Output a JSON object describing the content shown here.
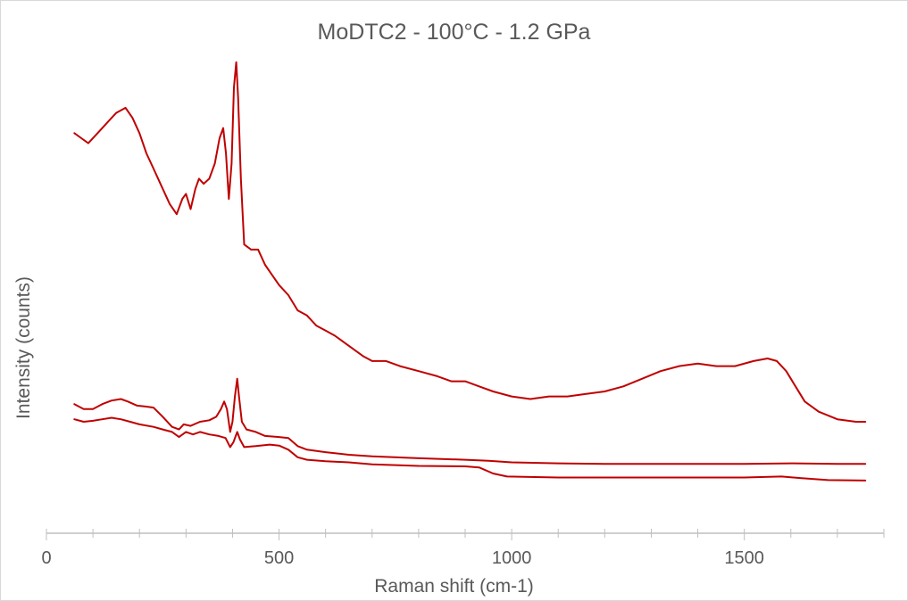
{
  "colors": {
    "series": "#c00000",
    "axis": "#bfbfbf",
    "text": "#595959"
  },
  "chart_data": {
    "type": "line",
    "title": "MoDTC2 - 100°C - 1.2 GPa",
    "xlabel": "Raman shift (cm-1)",
    "ylabel": "Intensity (counts)",
    "xlim": [
      0,
      1800
    ],
    "ylim": [
      0,
      1
    ],
    "x_major_ticks": [
      0,
      500,
      1000,
      1500
    ],
    "x_minor_step": 100,
    "y_tick_labels_shown": false,
    "grid": false,
    "legend": "none",
    "series": [
      {
        "values": [
          [
            60,
            0.79
          ],
          [
            75,
            0.78
          ],
          [
            90,
            0.77
          ],
          [
            110,
            0.79
          ],
          [
            130,
            0.81
          ],
          [
            150,
            0.83
          ],
          [
            170,
            0.84
          ],
          [
            185,
            0.82
          ],
          [
            200,
            0.79
          ],
          [
            215,
            0.75
          ],
          [
            230,
            0.72
          ],
          [
            250,
            0.68
          ],
          [
            265,
            0.65
          ],
          [
            280,
            0.63
          ],
          [
            292,
            0.66
          ],
          [
            300,
            0.67
          ],
          [
            310,
            0.64
          ],
          [
            320,
            0.68
          ],
          [
            328,
            0.7
          ],
          [
            338,
            0.69
          ],
          [
            350,
            0.7
          ],
          [
            362,
            0.73
          ],
          [
            372,
            0.78
          ],
          [
            380,
            0.8
          ],
          [
            386,
            0.75
          ],
          [
            392,
            0.66
          ],
          [
            398,
            0.73
          ],
          [
            403,
            0.88
          ],
          [
            408,
            0.93
          ],
          [
            412,
            0.86
          ],
          [
            418,
            0.7
          ],
          [
            425,
            0.57
          ],
          [
            440,
            0.56
          ],
          [
            455,
            0.56
          ],
          [
            470,
            0.53
          ],
          [
            485,
            0.51
          ],
          [
            500,
            0.49
          ],
          [
            520,
            0.47
          ],
          [
            540,
            0.44
          ],
          [
            560,
            0.43
          ],
          [
            580,
            0.41
          ],
          [
            600,
            0.4
          ],
          [
            620,
            0.39
          ],
          [
            650,
            0.37
          ],
          [
            680,
            0.35
          ],
          [
            700,
            0.34
          ],
          [
            730,
            0.34
          ],
          [
            760,
            0.33
          ],
          [
            800,
            0.32
          ],
          [
            840,
            0.31
          ],
          [
            870,
            0.3
          ],
          [
            900,
            0.3
          ],
          [
            930,
            0.29
          ],
          [
            960,
            0.28
          ],
          [
            1000,
            0.27
          ],
          [
            1040,
            0.265
          ],
          [
            1080,
            0.27
          ],
          [
            1120,
            0.27
          ],
          [
            1160,
            0.275
          ],
          [
            1200,
            0.28
          ],
          [
            1240,
            0.29
          ],
          [
            1280,
            0.305
          ],
          [
            1320,
            0.32
          ],
          [
            1360,
            0.33
          ],
          [
            1400,
            0.335
          ],
          [
            1440,
            0.33
          ],
          [
            1480,
            0.33
          ],
          [
            1520,
            0.34
          ],
          [
            1550,
            0.345
          ],
          [
            1570,
            0.34
          ],
          [
            1590,
            0.32
          ],
          [
            1610,
            0.29
          ],
          [
            1630,
            0.26
          ],
          [
            1660,
            0.24
          ],
          [
            1700,
            0.225
          ],
          [
            1740,
            0.22
          ],
          [
            1760,
            0.22
          ]
        ]
      },
      {
        "values": [
          [
            60,
            0.255
          ],
          [
            80,
            0.245
          ],
          [
            100,
            0.245
          ],
          [
            120,
            0.255
          ],
          [
            140,
            0.262
          ],
          [
            160,
            0.265
          ],
          [
            175,
            0.26
          ],
          [
            195,
            0.252
          ],
          [
            215,
            0.25
          ],
          [
            230,
            0.248
          ],
          [
            250,
            0.23
          ],
          [
            270,
            0.21
          ],
          [
            285,
            0.205
          ],
          [
            295,
            0.215
          ],
          [
            310,
            0.212
          ],
          [
            330,
            0.22
          ],
          [
            350,
            0.223
          ],
          [
            365,
            0.23
          ],
          [
            375,
            0.245
          ],
          [
            382,
            0.26
          ],
          [
            388,
            0.245
          ],
          [
            395,
            0.2
          ],
          [
            400,
            0.22
          ],
          [
            405,
            0.27
          ],
          [
            410,
            0.305
          ],
          [
            414,
            0.27
          ],
          [
            420,
            0.22
          ],
          [
            430,
            0.205
          ],
          [
            450,
            0.2
          ],
          [
            470,
            0.192
          ],
          [
            500,
            0.19
          ],
          [
            520,
            0.188
          ],
          [
            540,
            0.172
          ],
          [
            560,
            0.165
          ],
          [
            600,
            0.16
          ],
          [
            650,
            0.155
          ],
          [
            700,
            0.152
          ],
          [
            800,
            0.148
          ],
          [
            900,
            0.145
          ],
          [
            950,
            0.143
          ],
          [
            1000,
            0.14
          ],
          [
            1100,
            0.138
          ],
          [
            1200,
            0.137
          ],
          [
            1300,
            0.137
          ],
          [
            1400,
            0.137
          ],
          [
            1500,
            0.137
          ],
          [
            1600,
            0.138
          ],
          [
            1700,
            0.137
          ],
          [
            1760,
            0.137
          ]
        ]
      },
      {
        "values": [
          [
            60,
            0.225
          ],
          [
            80,
            0.22
          ],
          [
            100,
            0.222
          ],
          [
            120,
            0.225
          ],
          [
            140,
            0.228
          ],
          [
            160,
            0.225
          ],
          [
            180,
            0.22
          ],
          [
            200,
            0.215
          ],
          [
            230,
            0.21
          ],
          [
            250,
            0.205
          ],
          [
            270,
            0.2
          ],
          [
            285,
            0.19
          ],
          [
            300,
            0.2
          ],
          [
            315,
            0.195
          ],
          [
            330,
            0.2
          ],
          [
            350,
            0.195
          ],
          [
            370,
            0.192
          ],
          [
            385,
            0.188
          ],
          [
            395,
            0.17
          ],
          [
            402,
            0.18
          ],
          [
            410,
            0.2
          ],
          [
            416,
            0.185
          ],
          [
            425,
            0.17
          ],
          [
            450,
            0.172
          ],
          [
            480,
            0.175
          ],
          [
            500,
            0.173
          ],
          [
            520,
            0.165
          ],
          [
            540,
            0.15
          ],
          [
            560,
            0.145
          ],
          [
            600,
            0.142
          ],
          [
            650,
            0.14
          ],
          [
            700,
            0.136
          ],
          [
            800,
            0.133
          ],
          [
            900,
            0.132
          ],
          [
            930,
            0.13
          ],
          [
            960,
            0.118
          ],
          [
            990,
            0.112
          ],
          [
            1050,
            0.111
          ],
          [
            1100,
            0.11
          ],
          [
            1200,
            0.11
          ],
          [
            1300,
            0.11
          ],
          [
            1400,
            0.11
          ],
          [
            1500,
            0.11
          ],
          [
            1580,
            0.112
          ],
          [
            1620,
            0.109
          ],
          [
            1680,
            0.105
          ],
          [
            1760,
            0.104
          ]
        ]
      }
    ]
  }
}
